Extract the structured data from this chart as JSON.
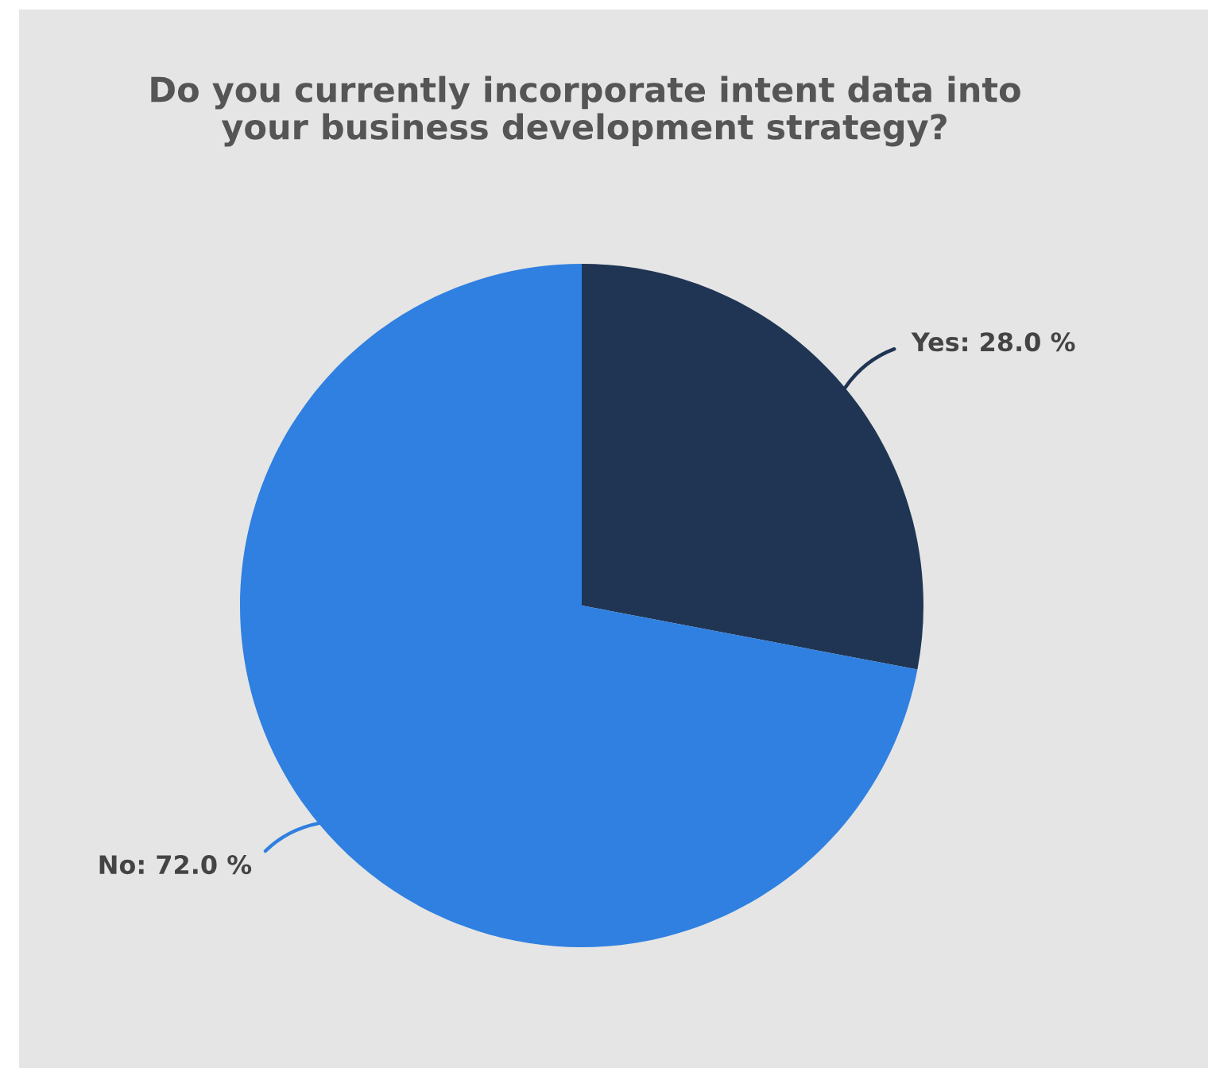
{
  "chart_data": {
    "type": "pie",
    "title": "Do you currently incorporate intent data into\nyour business development strategy?",
    "categories": [
      "Yes",
      "No"
    ],
    "values": [
      28.0,
      72.0
    ],
    "colors": [
      "#1f3553",
      "#2f80e0"
    ],
    "value_labels": [
      "28.0 %",
      "72.0 %"
    ]
  }
}
